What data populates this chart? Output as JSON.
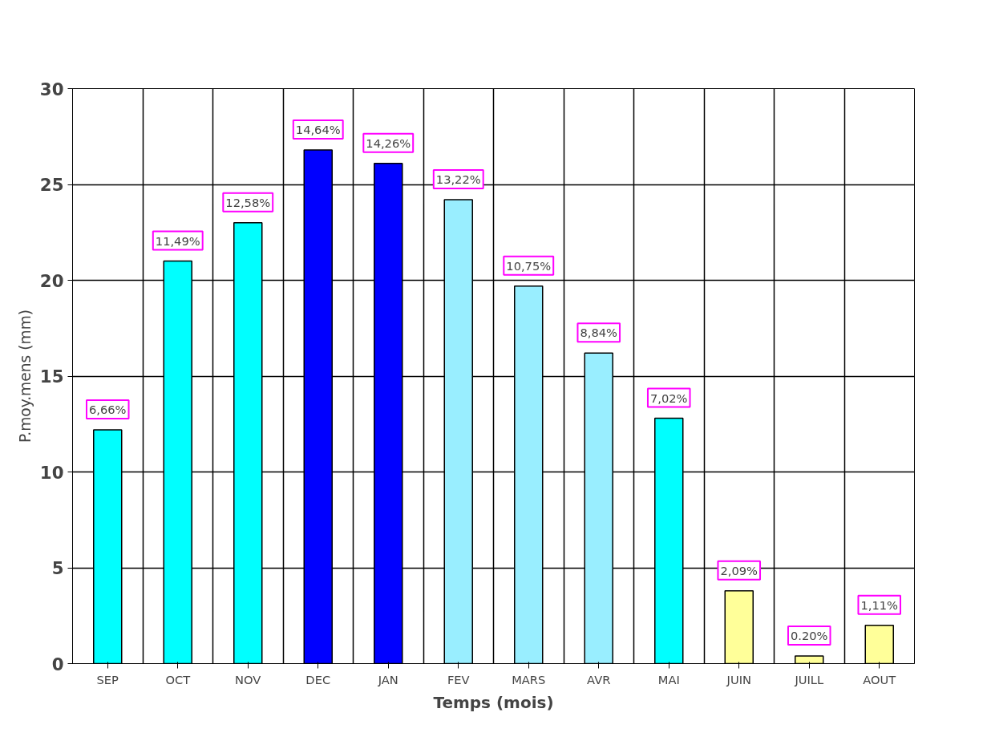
{
  "chart_data": {
    "type": "bar",
    "xlabel": "Temps (mois)",
    "ylabel": "P.moy.mens (mm)",
    "categories": [
      "SEP",
      "OCT",
      "NOV",
      "DEC",
      "JAN",
      "FEV",
      "MARS",
      "AVR",
      "MAI",
      "JUIN",
      "JUILL",
      "AOUT"
    ],
    "values": [
      12.2,
      21.0,
      23.0,
      26.8,
      26.1,
      24.2,
      19.7,
      16.2,
      12.8,
      3.8,
      0.4,
      2.0
    ],
    "colors": [
      "#00ffff",
      "#00ffff",
      "#00ffff",
      "#0000ff",
      "#0000ff",
      "#99eeff",
      "#99eeff",
      "#99eeff",
      "#00ffff",
      "#ffff99",
      "#ffff99",
      "#ffff99"
    ],
    "annotations": [
      {
        "text": "6,66%",
        "x": "SEP",
        "y": 12.2
      },
      {
        "text": "11,49%",
        "x": "OCT",
        "y": 21.0
      },
      {
        "text": "12,58%",
        "x": "NOV",
        "y": 23.0
      },
      {
        "text": "14,64%",
        "x": "DEC",
        "y": 26.8
      },
      {
        "text": "14,26%",
        "x": "JAN",
        "y": 26.1
      },
      {
        "text": "13,22%",
        "x": "FEV",
        "y": 24.2
      },
      {
        "text": "10,75%",
        "x": "MARS",
        "y": 19.7
      },
      {
        "text": "8,84%",
        "x": "AVR",
        "y": 16.2
      },
      {
        "text": "7,02%",
        "x": "MAI",
        "y": 12.8
      },
      {
        "text": "2,09%",
        "x": "JUIN",
        "y": 3.8
      },
      {
        "text": "0.20%",
        "x": "JUILL",
        "y": 0.4
      },
      {
        "text": "1,11%",
        "x": "AOUT",
        "y": 2.0
      }
    ],
    "ylim": [
      0,
      30
    ],
    "yticks": [
      0,
      5,
      10,
      15,
      20,
      25,
      30
    ],
    "grid": true
  }
}
